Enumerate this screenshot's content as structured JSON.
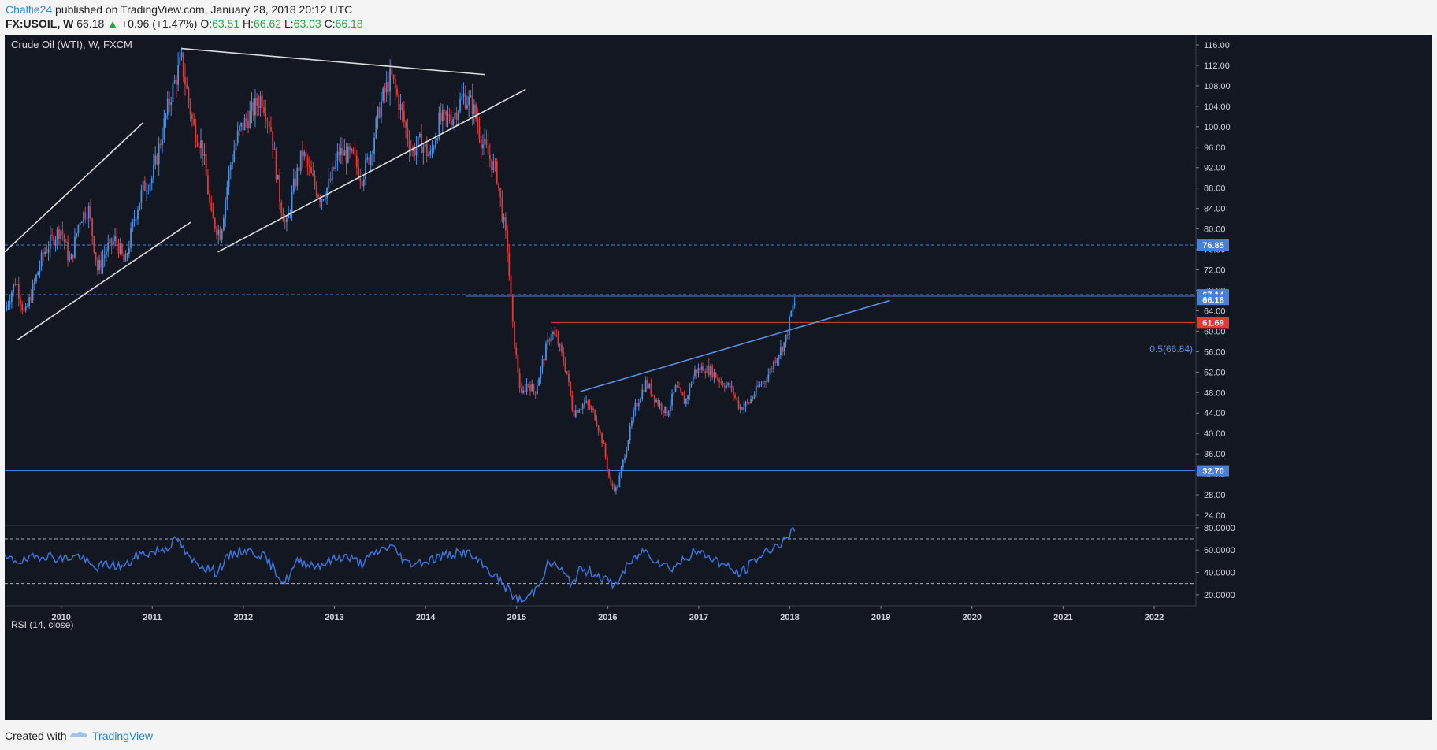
{
  "header": {
    "author": "Chalfie24",
    "published_text": "published on TradingView.com, January 28, 2018 20:12 UTC",
    "symbol": "FX:USOIL, W",
    "last": "66.18",
    "arrow": "▲",
    "change": "+0.96 (+1.47%)",
    "open_label": "O:",
    "open": "63.51",
    "high_label": "H:",
    "high": "66.62",
    "low_label": "L:",
    "low": "63.03",
    "close_label": "C:",
    "close": "66.18"
  },
  "colors": {
    "background": "#131722",
    "up": "#4a90e2",
    "down": "#e53935",
    "rsi_line": "#3d73d8",
    "axis_text": "#cfd2d8",
    "trend_white": "#dcdcdc",
    "trend_blue": "#5b8fe0",
    "level_red": "#e53935"
  },
  "chart_data": {
    "type": "candlestick",
    "title": "Crude Oil (WTI), W, FXCM",
    "y_axis": {
      "min": 22,
      "max": 118,
      "ticks": [
        "116.00",
        "112.00",
        "108.00",
        "104.00",
        "100.00",
        "96.00",
        "92.00",
        "88.00",
        "84.00",
        "80.00",
        "76.00",
        "72.00",
        "68.00",
        "64.00",
        "60.00",
        "56.00",
        "52.00",
        "48.00",
        "44.00",
        "40.00",
        "36.00",
        "32.00",
        "28.00",
        "24.00"
      ]
    },
    "x_axis": {
      "start": 2009.38,
      "end": 2022.45,
      "tick_labels": [
        "2010",
        "2011",
        "2012",
        "2013",
        "2014",
        "2015",
        "2016",
        "2017",
        "2018",
        "2019",
        "2020",
        "2021",
        "2022"
      ]
    },
    "price_path": [
      [
        2009.38,
        64
      ],
      [
        2009.5,
        70
      ],
      [
        2009.6,
        63
      ],
      [
        2009.7,
        69
      ],
      [
        2009.8,
        75
      ],
      [
        2009.9,
        78
      ],
      [
        2010.0,
        80
      ],
      [
        2010.1,
        73
      ],
      [
        2010.2,
        82
      ],
      [
        2010.3,
        84
      ],
      [
        2010.4,
        72
      ],
      [
        2010.5,
        76
      ],
      [
        2010.6,
        78
      ],
      [
        2010.7,
        73
      ],
      [
        2010.8,
        82
      ],
      [
        2010.9,
        88
      ],
      [
        2011.0,
        90
      ],
      [
        2011.1,
        98
      ],
      [
        2011.2,
        106
      ],
      [
        2011.32,
        113
      ],
      [
        2011.45,
        100
      ],
      [
        2011.55,
        96
      ],
      [
        2011.65,
        82
      ],
      [
        2011.75,
        79
      ],
      [
        2011.85,
        92
      ],
      [
        2011.95,
        99
      ],
      [
        2012.1,
        103
      ],
      [
        2012.2,
        106
      ],
      [
        2012.3,
        100
      ],
      [
        2012.4,
        86
      ],
      [
        2012.47,
        80
      ],
      [
        2012.55,
        88
      ],
      [
        2012.65,
        95
      ],
      [
        2012.75,
        90
      ],
      [
        2012.85,
        86
      ],
      [
        2012.95,
        89
      ],
      [
        2013.05,
        95
      ],
      [
        2013.2,
        94
      ],
      [
        2013.3,
        90
      ],
      [
        2013.4,
        95
      ],
      [
        2013.5,
        104
      ],
      [
        2013.62,
        110
      ],
      [
        2013.72,
        104
      ],
      [
        2013.85,
        95
      ],
      [
        2013.95,
        97
      ],
      [
        2014.05,
        94
      ],
      [
        2014.15,
        101
      ],
      [
        2014.3,
        102
      ],
      [
        2014.42,
        106
      ],
      [
        2014.52,
        104
      ],
      [
        2014.62,
        97
      ],
      [
        2014.7,
        94
      ],
      [
        2014.78,
        91
      ],
      [
        2014.85,
        82
      ],
      [
        2014.9,
        76
      ],
      [
        2014.96,
        60
      ],
      [
        2015.05,
        47
      ],
      [
        2015.12,
        50
      ],
      [
        2015.2,
        48
      ],
      [
        2015.3,
        55
      ],
      [
        2015.38,
        60
      ],
      [
        2015.45,
        58
      ],
      [
        2015.55,
        52
      ],
      [
        2015.62,
        44
      ],
      [
        2015.68,
        45
      ],
      [
        2015.75,
        46
      ],
      [
        2015.85,
        44
      ],
      [
        2015.95,
        38
      ],
      [
        2016.03,
        30
      ],
      [
        2016.1,
        29
      ],
      [
        2016.2,
        37
      ],
      [
        2016.3,
        45
      ],
      [
        2016.42,
        50
      ],
      [
        2016.55,
        46
      ],
      [
        2016.65,
        44
      ],
      [
        2016.75,
        49
      ],
      [
        2016.85,
        46
      ],
      [
        2016.95,
        52
      ],
      [
        2017.05,
        53
      ],
      [
        2017.15,
        52
      ],
      [
        2017.25,
        50
      ],
      [
        2017.35,
        49
      ],
      [
        2017.45,
        45
      ],
      [
        2017.55,
        46
      ],
      [
        2017.65,
        49
      ],
      [
        2017.75,
        51
      ],
      [
        2017.85,
        55
      ],
      [
        2017.95,
        58
      ],
      [
        2018.02,
        64
      ],
      [
        2018.07,
        66.18
      ]
    ],
    "rsi": {
      "label": "RSI (14, close)",
      "levels": [
        70,
        30
      ],
      "ticks": [
        "80.0000",
        "60.0000",
        "40.0000",
        "20.0000"
      ],
      "path": [
        [
          2009.38,
          52
        ],
        [
          2009.6,
          50
        ],
        [
          2009.8,
          56
        ],
        [
          2010.0,
          52
        ],
        [
          2010.2,
          55
        ],
        [
          2010.35,
          44
        ],
        [
          2010.5,
          47
        ],
        [
          2010.7,
          45
        ],
        [
          2010.85,
          56
        ],
        [
          2011.0,
          58
        ],
        [
          2011.15,
          62
        ],
        [
          2011.28,
          70
        ],
        [
          2011.4,
          52
        ],
        [
          2011.55,
          46
        ],
        [
          2011.7,
          40
        ],
        [
          2011.85,
          55
        ],
        [
          2012.0,
          60
        ],
        [
          2012.2,
          56
        ],
        [
          2012.35,
          42
        ],
        [
          2012.45,
          30
        ],
        [
          2012.6,
          50
        ],
        [
          2012.8,
          46
        ],
        [
          2012.95,
          50
        ],
        [
          2013.1,
          55
        ],
        [
          2013.3,
          48
        ],
        [
          2013.5,
          60
        ],
        [
          2013.62,
          64
        ],
        [
          2013.8,
          48
        ],
        [
          2014.0,
          50
        ],
        [
          2014.2,
          55
        ],
        [
          2014.45,
          58
        ],
        [
          2014.6,
          48
        ],
        [
          2014.75,
          38
        ],
        [
          2014.9,
          25
        ],
        [
          2015.0,
          16
        ],
        [
          2015.08,
          14
        ],
        [
          2015.2,
          24
        ],
        [
          2015.35,
          48
        ],
        [
          2015.45,
          46
        ],
        [
          2015.6,
          30
        ],
        [
          2015.7,
          42
        ],
        [
          2015.85,
          40
        ],
        [
          2016.0,
          32
        ],
        [
          2016.08,
          28
        ],
        [
          2016.2,
          44
        ],
        [
          2016.4,
          60
        ],
        [
          2016.55,
          50
        ],
        [
          2016.7,
          44
        ],
        [
          2016.85,
          52
        ],
        [
          2016.95,
          58
        ],
        [
          2017.1,
          55
        ],
        [
          2017.25,
          48
        ],
        [
          2017.45,
          38
        ],
        [
          2017.6,
          50
        ],
        [
          2017.8,
          62
        ],
        [
          2017.95,
          68
        ],
        [
          2018.02,
          76
        ],
        [
          2018.07,
          79
        ]
      ]
    },
    "horizontal_levels": [
      {
        "price": 76.85,
        "label": "76.85",
        "style": "dashed",
        "color": "#4a7fd6"
      },
      {
        "price": 67.14,
        "label": "67.14",
        "style": "dashed",
        "color": "#4a7fd6"
      },
      {
        "price": 66.18,
        "label": "66.18",
        "style": "price",
        "color": "#4a7fd6"
      },
      {
        "price": 61.69,
        "label": "61.69",
        "style": "solid",
        "color": "#e53935"
      },
      {
        "price": 32.7,
        "label": "32.70",
        "style": "solid",
        "color": "#4a7fd6"
      }
    ],
    "fib_label": "0.5(66.84)",
    "trendlines": [
      {
        "from": [
          2009.38,
          75.5
        ],
        "to": [
          2010.9,
          100.8
        ],
        "color": "white"
      },
      {
        "from": [
          2009.52,
          58.3
        ],
        "to": [
          2011.42,
          81.3
        ],
        "color": "white"
      },
      {
        "from": [
          2011.32,
          115.3
        ],
        "to": [
          2014.65,
          110.2
        ],
        "color": "white"
      },
      {
        "from": [
          2011.72,
          75.5
        ],
        "to": [
          2015.1,
          107.3
        ],
        "color": "white"
      },
      {
        "from": [
          2015.7,
          48.2
        ],
        "to": [
          2019.1,
          66.0
        ],
        "color": "blue"
      }
    ]
  },
  "footer": {
    "created_with": "Created with",
    "brand": "TradingView"
  }
}
